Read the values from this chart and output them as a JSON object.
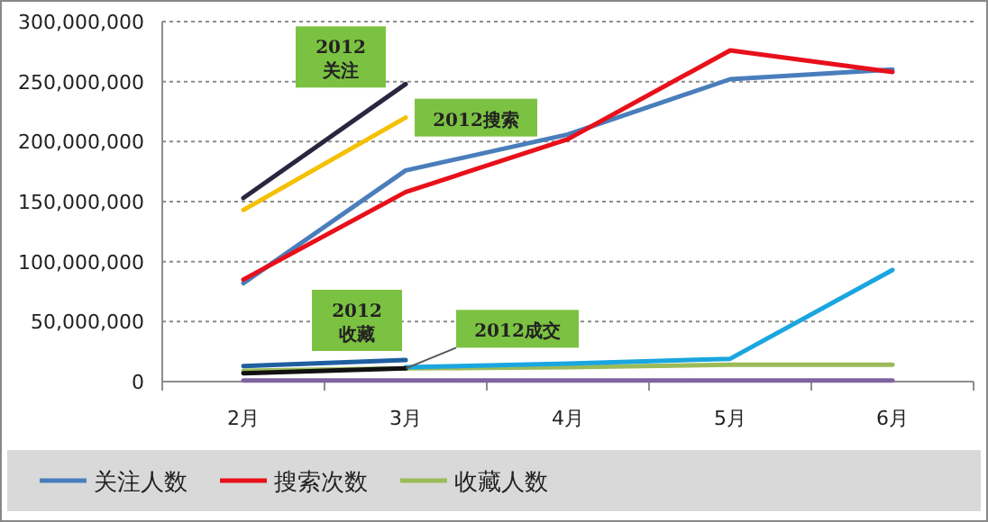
{
  "chart_data": {
    "type": "line",
    "categories": [
      "2月",
      "3月",
      "4月",
      "5月",
      "6月"
    ],
    "series": [
      {
        "name": "关注人数",
        "color": "#4a7ebb",
        "values": [
          82000000,
          176000000,
          206000000,
          252000000,
          260000000
        ]
      },
      {
        "name": "搜索次数",
        "color": "#e8101a",
        "values": [
          85000000,
          158000000,
          202000000,
          276000000,
          258000000
        ]
      },
      {
        "name": "收藏人数",
        "color": "#9bbb59",
        "values": [
          9000000,
          11000000,
          12000000,
          14000000,
          14000000
        ]
      },
      {
        "color": "#8064a2",
        "values": [
          1000000,
          1000000,
          1000000,
          1000000,
          1000000
        ]
      },
      {
        "color": "#1aa6e0",
        "values": [
          null,
          12000000,
          15000000,
          19000000,
          93000000
        ]
      },
      {
        "color": "#2b2640",
        "values": [
          153000000,
          248000000,
          null,
          null,
          null
        ]
      },
      {
        "color": "#f5c000",
        "values": [
          143000000,
          220000000,
          null,
          null,
          null
        ]
      },
      {
        "color": "#1f5fa0",
        "values": [
          13000000,
          18000000,
          null,
          null,
          null
        ]
      },
      {
        "color": "#111111",
        "values": [
          7000000,
          11000000,
          null,
          null,
          null
        ]
      }
    ],
    "ylim": [
      0,
      300000000
    ],
    "yticks": [
      {
        "value": 0,
        "label": "0"
      },
      {
        "value": 50000000,
        "label": "50,000,000"
      },
      {
        "value": 100000000,
        "label": "100,000,000"
      },
      {
        "value": 150000000,
        "label": "150,000,000"
      },
      {
        "value": 200000000,
        "label": "200,000,000"
      },
      {
        "value": 250000000,
        "label": "250,000,000"
      },
      {
        "value": 300000000,
        "label": "300,000,000"
      }
    ],
    "grid": "y",
    "legend": "bottom",
    "marker": "none",
    "line_style": "solid",
    "annotations": [
      {
        "text": "2012 关注",
        "x": "3月",
        "y": 248000000
      },
      {
        "text": "2012搜索",
        "x": "3月",
        "y": 220000000
      },
      {
        "text": "2012 收藏",
        "x": "3月",
        "y": 18000000
      },
      {
        "text": "2012成交",
        "x": "3月",
        "y": 11000000
      }
    ]
  }
}
